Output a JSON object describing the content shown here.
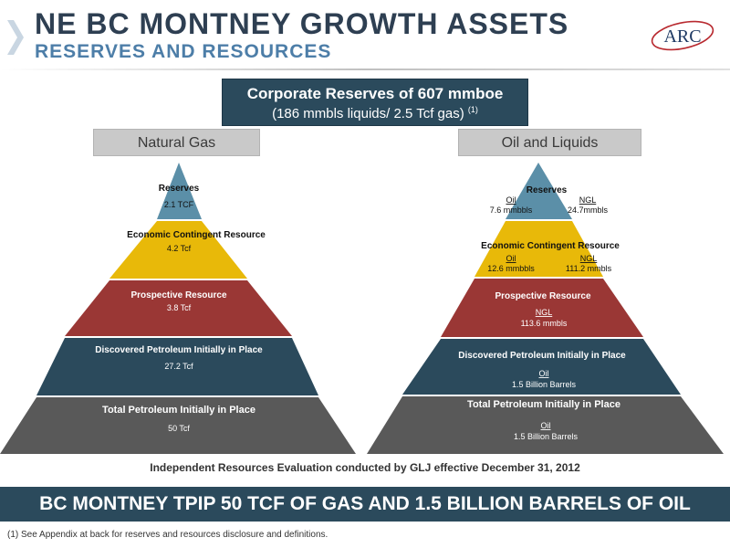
{
  "header": {
    "title": "NE BC MONTNEY GROWTH ASSETS",
    "subtitle": "RESERVES AND RESOURCES",
    "logo_text": "ARC"
  },
  "corporate": {
    "line1": "Corporate Reserves of 607 mmboe",
    "line2": "(186 mmbls liquids/ 2.5 Tcf gas)",
    "footnote_marker": "(1)"
  },
  "natural_gas": {
    "title": "Natural Gas",
    "tiers": [
      {
        "label": "Reserves",
        "value": "2.1 TCF",
        "color": "#5b8fa8"
      },
      {
        "label": "Economic Contingent Resource",
        "value": "4.2 Tcf",
        "color": "#e8b909"
      },
      {
        "label": "Prospective Resource",
        "value": "3.8 Tcf",
        "color": "#9a3735"
      },
      {
        "label": "Discovered Petroleum Initially in Place",
        "value": "27.2 Tcf",
        "color": "#2b4a5c"
      },
      {
        "label": "Total Petroleum Initially in Place",
        "value": "50 Tcf",
        "color": "#595959"
      }
    ]
  },
  "oil_liquids": {
    "title": "Oil and Liquids",
    "tiers": [
      {
        "label": "Reserves",
        "oil_label": "Oil",
        "oil_value": "7.6 mmbbls",
        "ngl_label": "NGL",
        "ngl_value": "24.7mmbls",
        "color": "#5b8fa8"
      },
      {
        "label": "Economic Contingent Resource",
        "oil_label": "Oil",
        "oil_value": "12.6 mmbbls",
        "ngl_label": "NGL",
        "ngl_value": "111.2 mmbls",
        "color": "#e8b909"
      },
      {
        "label": "Prospective Resource",
        "ngl_label": "NGL",
        "ngl_value": "113.6 mmbls",
        "color": "#9a3735"
      },
      {
        "label": "Discovered Petroleum Initially in Place",
        "oil_label": "Oil",
        "oil_value": "1.5 Billion Barrels",
        "color": "#2b4a5c"
      },
      {
        "label": "Total Petroleum Initially in Place",
        "oil_label": "Oil",
        "oil_value": "1.5 Billion Barrels",
        "color": "#595959"
      }
    ]
  },
  "evaluation_note": "Independent Resources Evaluation conducted by GLJ effective December 31, 2012",
  "banner": "BC MONTNEY TPIP 50 TCF OF GAS AND 1.5 BILLION BARRELS OF OIL",
  "footnote": "(1) See Appendix at back for reserves and resources  disclosure and definitions.",
  "colors": {
    "navy": "#2b4a5c",
    "title_dark": "#2e3f52",
    "title_blue": "#4d7ea8",
    "logo_red": "#b8292f"
  }
}
